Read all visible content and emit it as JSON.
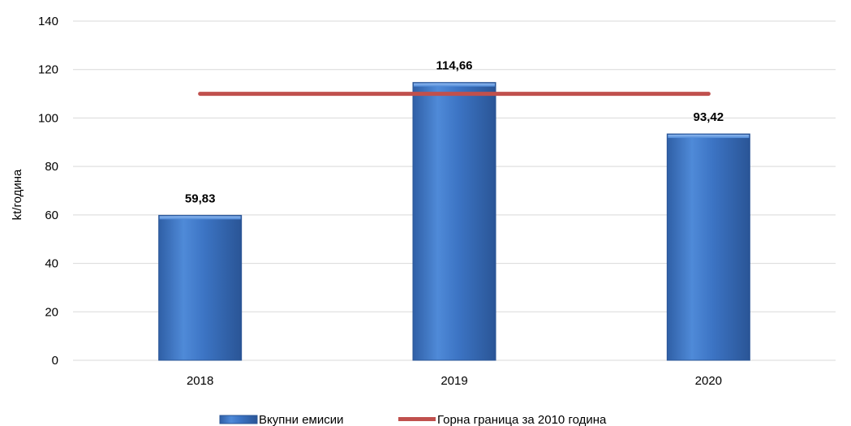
{
  "chart_data": {
    "type": "bar",
    "categories": [
      "2018",
      "2019",
      "2020"
    ],
    "series": [
      {
        "name": "Вкупни емисии",
        "type": "bar",
        "values": [
          59.83,
          114.66,
          93.42
        ],
        "data_labels": [
          "59,83",
          "114,66",
          "93,42"
        ],
        "color": "#3b73c4"
      },
      {
        "name": "Горна граница за 2010 година",
        "type": "line",
        "values": [
          110,
          110,
          110
        ],
        "color": "#c0504d"
      }
    ],
    "ylabel": "kt/година",
    "ylim": [
      0,
      140
    ],
    "yticks": [
      "0",
      "20",
      "40",
      "60",
      "80",
      "100",
      "120",
      "140"
    ],
    "grid": true,
    "legend": "bottom-center"
  }
}
